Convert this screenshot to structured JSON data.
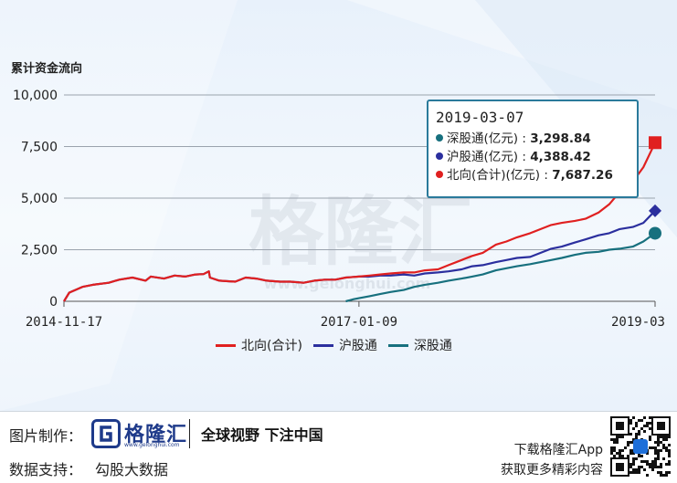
{
  "chart_data": {
    "type": "line",
    "title": "累计资金流向",
    "ylim": [
      0,
      10000
    ],
    "yticks": [
      "0",
      "2,500",
      "5,000",
      "7,500",
      "10,000"
    ],
    "ytick_values": [
      0,
      2500,
      5000,
      7500,
      10000
    ],
    "xticks": [
      {
        "label": "2014-11-17",
        "date": "2014-11-17"
      },
      {
        "label": "2017-01-09",
        "date": "2017-01-09"
      },
      {
        "label": "2019-03",
        "date": "2019-03-07"
      }
    ],
    "x_range": [
      "2014-11-17",
      "2019-03-07"
    ],
    "grid": true,
    "legend_position": "bottom",
    "series": [
      {
        "name": "北向(合计)",
        "color": "#e02020",
        "marker": "square",
        "points": [
          [
            "2014-11-17",
            0
          ],
          [
            "2014-12-01",
            420
          ],
          [
            "2015-01-05",
            700
          ],
          [
            "2015-02-02",
            800
          ],
          [
            "2015-03-16",
            900
          ],
          [
            "2015-04-13",
            1050
          ],
          [
            "2015-05-18",
            1150
          ],
          [
            "2015-06-22",
            1000
          ],
          [
            "2015-07-06",
            1200
          ],
          [
            "2015-08-10",
            1100
          ],
          [
            "2015-09-07",
            1250
          ],
          [
            "2015-10-05",
            1200
          ],
          [
            "2015-11-02",
            1300
          ],
          [
            "2015-11-23",
            1320
          ],
          [
            "2015-12-07",
            1450
          ],
          [
            "2015-12-10",
            1150
          ],
          [
            "2016-01-04",
            1000
          ],
          [
            "2016-02-15",
            950
          ],
          [
            "2016-03-14",
            1150
          ],
          [
            "2016-04-11",
            1100
          ],
          [
            "2016-05-09",
            1000
          ],
          [
            "2016-06-13",
            950
          ],
          [
            "2016-07-11",
            950
          ],
          [
            "2016-08-15",
            900
          ],
          [
            "2016-09-12",
            1000
          ],
          [
            "2016-10-10",
            1050
          ],
          [
            "2016-11-07",
            1050
          ],
          [
            "2016-12-05",
            1150
          ],
          [
            "2017-01-09",
            1200
          ],
          [
            "2017-02-06",
            1250
          ],
          [
            "2017-03-06",
            1300
          ],
          [
            "2017-04-03",
            1350
          ],
          [
            "2017-05-08",
            1400
          ],
          [
            "2017-06-05",
            1400
          ],
          [
            "2017-07-03",
            1500
          ],
          [
            "2017-08-07",
            1550
          ],
          [
            "2017-09-04",
            1750
          ],
          [
            "2017-10-09",
            2000
          ],
          [
            "2017-11-06",
            2200
          ],
          [
            "2017-12-04",
            2350
          ],
          [
            "2018-01-08",
            2750
          ],
          [
            "2018-02-05",
            2900
          ],
          [
            "2018-03-05",
            3100
          ],
          [
            "2018-04-09",
            3300
          ],
          [
            "2018-05-07",
            3500
          ],
          [
            "2018-06-04",
            3700
          ],
          [
            "2018-07-02",
            3800
          ],
          [
            "2018-08-06",
            3900
          ],
          [
            "2018-09-03",
            4000
          ],
          [
            "2018-10-08",
            4300
          ],
          [
            "2018-11-05",
            4700
          ],
          [
            "2018-12-03",
            5300
          ],
          [
            "2019-01-07",
            5800
          ],
          [
            "2019-02-04",
            6500
          ],
          [
            "2019-03-07",
            7687.26
          ]
        ]
      },
      {
        "name": "沪股通",
        "color": "#2b2f9e",
        "marker": "diamond",
        "points": [
          [
            "2014-11-17",
            0
          ],
          [
            "2014-12-01",
            420
          ],
          [
            "2015-01-05",
            700
          ],
          [
            "2015-02-02",
            800
          ],
          [
            "2015-03-16",
            900
          ],
          [
            "2015-04-13",
            1050
          ],
          [
            "2015-05-18",
            1150
          ],
          [
            "2015-06-22",
            1000
          ],
          [
            "2015-07-06",
            1200
          ],
          [
            "2015-08-10",
            1100
          ],
          [
            "2015-09-07",
            1250
          ],
          [
            "2015-10-05",
            1200
          ],
          [
            "2015-11-02",
            1300
          ],
          [
            "2015-11-23",
            1320
          ],
          [
            "2015-12-07",
            1450
          ],
          [
            "2015-12-10",
            1150
          ],
          [
            "2016-01-04",
            1000
          ],
          [
            "2016-02-15",
            950
          ],
          [
            "2016-03-14",
            1150
          ],
          [
            "2016-04-11",
            1100
          ],
          [
            "2016-05-09",
            1000
          ],
          [
            "2016-06-13",
            950
          ],
          [
            "2016-07-11",
            950
          ],
          [
            "2016-08-15",
            900
          ],
          [
            "2016-09-12",
            1000
          ],
          [
            "2016-10-10",
            1050
          ],
          [
            "2016-11-07",
            1050
          ],
          [
            "2016-12-05",
            1150
          ],
          [
            "2017-01-09",
            1200
          ],
          [
            "2017-02-06",
            1200
          ],
          [
            "2017-03-06",
            1250
          ],
          [
            "2017-04-03",
            1250
          ],
          [
            "2017-05-08",
            1300
          ],
          [
            "2017-06-05",
            1250
          ],
          [
            "2017-07-03",
            1350
          ],
          [
            "2017-08-07",
            1400
          ],
          [
            "2017-09-04",
            1450
          ],
          [
            "2017-10-09",
            1550
          ],
          [
            "2017-11-06",
            1700
          ],
          [
            "2017-12-04",
            1750
          ],
          [
            "2018-01-08",
            1900
          ],
          [
            "2018-02-05",
            2000
          ],
          [
            "2018-03-05",
            2100
          ],
          [
            "2018-04-09",
            2150
          ],
          [
            "2018-05-07",
            2350
          ],
          [
            "2018-06-04",
            2550
          ],
          [
            "2018-07-02",
            2650
          ],
          [
            "2018-08-06",
            2850
          ],
          [
            "2018-09-03",
            3000
          ],
          [
            "2018-10-08",
            3200
          ],
          [
            "2018-11-05",
            3300
          ],
          [
            "2018-12-03",
            3500
          ],
          [
            "2019-01-07",
            3600
          ],
          [
            "2019-02-04",
            3800
          ],
          [
            "2019-03-07",
            4388.42
          ]
        ]
      },
      {
        "name": "深股通",
        "color": "#17707e",
        "marker": "circle",
        "points": [
          [
            "2016-12-05",
            0
          ],
          [
            "2016-12-26",
            100
          ],
          [
            "2017-01-09",
            150
          ],
          [
            "2017-02-06",
            250
          ],
          [
            "2017-03-06",
            350
          ],
          [
            "2017-04-03",
            450
          ],
          [
            "2017-05-08",
            550
          ],
          [
            "2017-06-05",
            700
          ],
          [
            "2017-07-03",
            800
          ],
          [
            "2017-08-07",
            900
          ],
          [
            "2017-09-04",
            1000
          ],
          [
            "2017-10-09",
            1100
          ],
          [
            "2017-11-06",
            1200
          ],
          [
            "2017-12-04",
            1300
          ],
          [
            "2018-01-08",
            1500
          ],
          [
            "2018-02-05",
            1600
          ],
          [
            "2018-03-05",
            1700
          ],
          [
            "2018-04-09",
            1800
          ],
          [
            "2018-05-07",
            1900
          ],
          [
            "2018-06-04",
            2000
          ],
          [
            "2018-07-02",
            2100
          ],
          [
            "2018-08-06",
            2250
          ],
          [
            "2018-09-03",
            2350
          ],
          [
            "2018-10-08",
            2400
          ],
          [
            "2018-11-05",
            2500
          ],
          [
            "2018-12-03",
            2550
          ],
          [
            "2019-01-07",
            2650
          ],
          [
            "2019-02-04",
            2900
          ],
          [
            "2019-03-07",
            3298.84
          ]
        ]
      }
    ]
  },
  "tooltip": {
    "date": "2019-03-07",
    "rows": [
      {
        "label": "深股通(亿元)",
        "value": "3,298.84",
        "color": "#17707e"
      },
      {
        "label": "沪股通(亿元)",
        "value": "4,388.42",
        "color": "#2b2f9e"
      },
      {
        "label": "北向(合计)(亿元)",
        "value": "7,687.26",
        "color": "#e02020"
      }
    ]
  },
  "legend": [
    {
      "label": "北向(合计)",
      "color": "#e02020"
    },
    {
      "label": "沪股通",
      "color": "#2b2f9e"
    },
    {
      "label": "深股通",
      "color": "#17707e"
    }
  ],
  "watermark": {
    "text": "格隆汇",
    "url": "www.gelonghui.com"
  },
  "footer": {
    "chart_maker_label": "图片制作：",
    "logo_text": "格隆汇",
    "logo_sub": "www.gelonghui.com",
    "slogan": "全球视野 下注中国",
    "data_support_label": "数据支持：",
    "data_source": "勾股大数据",
    "download_text": "下载格隆汇App",
    "more_text": "获取更多精彩内容"
  }
}
